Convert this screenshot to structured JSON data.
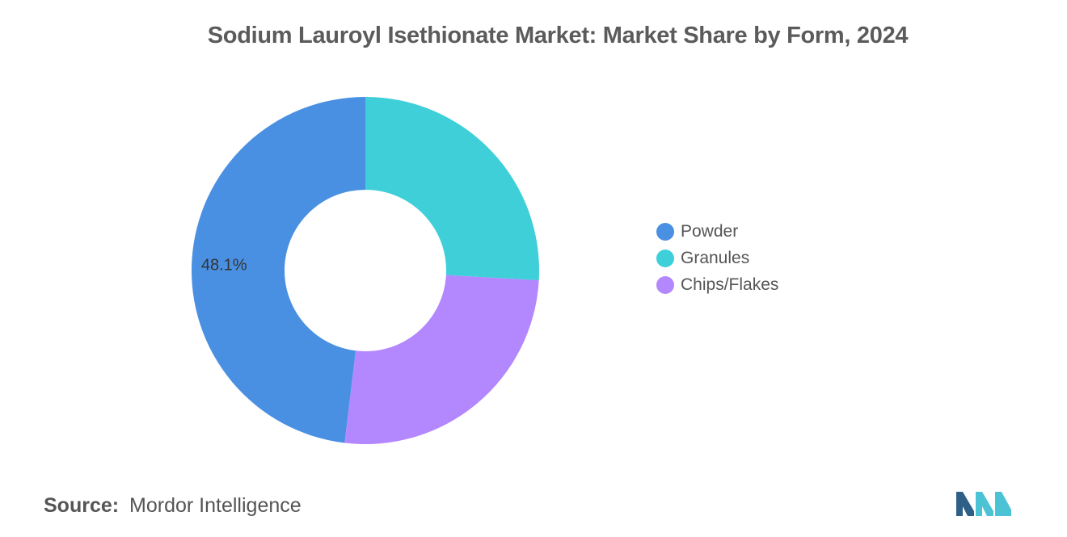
{
  "chart_data": {
    "type": "pie",
    "title": "Sodium Lauroyl Isethionate Market: Market Share by Form, 2024",
    "donut": true,
    "categories": [
      "Powder",
      "Granules",
      "Chips/Flakes"
    ],
    "values": [
      48.1,
      25.9,
      26.0
    ],
    "data_labels": [
      "48.1%",
      "",
      ""
    ],
    "colors": [
      "#4a90e2",
      "#3ecfd9",
      "#b388ff"
    ],
    "legend_position": "right"
  },
  "source": {
    "label": "Source:",
    "value": "Mordor Intelligence"
  },
  "logo": {
    "icon": "mordor-intelligence-logo-icon",
    "colors": [
      "#2e5f86",
      "#4bc3d4"
    ]
  }
}
